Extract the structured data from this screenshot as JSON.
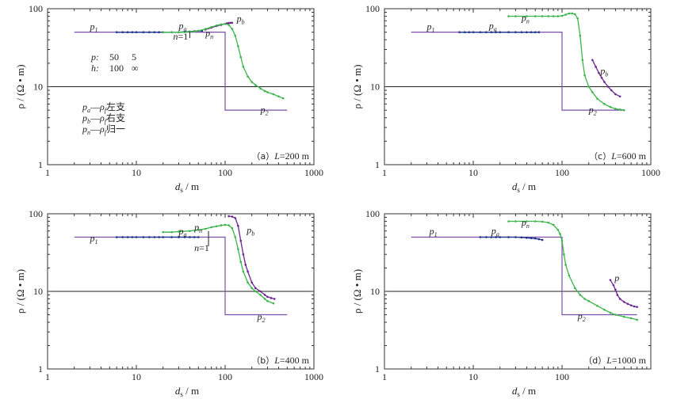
{
  "chart_data": [
    {
      "type": "line",
      "panel_label": "（a）",
      "title": "（a）L=200 m",
      "title_var": "L",
      "title_value": "=200 m",
      "xlabel_main": "d",
      "xlabel_sub": "s",
      "xlabel_unit": " / m",
      "ylabel": "ρ / (Ω • m)",
      "xscale": "log",
      "yscale": "log",
      "xlim": [
        1,
        1000
      ],
      "ylim": [
        1,
        100
      ],
      "xticks": [
        "1",
        "10",
        "100",
        "1000"
      ],
      "yticks": [
        "1",
        "10",
        "100"
      ],
      "model": {
        "upper": {
          "x": [
            2,
            100
          ],
          "y": 50
        },
        "step_x": 100,
        "lower": {
          "x": [
            100,
            500
          ],
          "y": 5
        }
      },
      "model_labels": [
        {
          "text": "p",
          "sub": "1",
          "x": 3,
          "y": 54
        },
        {
          "text": "p",
          "sub": "2",
          "x": 250,
          "y": 4.6
        }
      ],
      "series": [
        {
          "name_text": "p",
          "name_sub": "a",
          "color": "#1a2f8a",
          "x": [
            6,
            7,
            8,
            9,
            10,
            12,
            14,
            16,
            18,
            20,
            25,
            30,
            35,
            40,
            45,
            50,
            55
          ],
          "y": [
            50,
            50,
            50,
            50,
            50,
            50,
            50,
            50,
            50,
            50,
            50,
            50,
            50.5,
            51,
            51.5,
            52,
            52
          ]
        },
        {
          "name_text": "p",
          "name_sub": "b",
          "color": "#6a2590",
          "x": [
            60,
            70,
            80,
            90,
            100,
            105,
            110,
            115,
            120
          ],
          "y": [
            54,
            57,
            60,
            62,
            64,
            65,
            65.5,
            66,
            66
          ]
        },
        {
          "name_text": "p",
          "name_sub": "n",
          "color": "#3ab54a",
          "x": [
            20,
            25,
            30,
            35,
            40,
            45,
            50,
            60,
            70,
            80,
            90,
            100,
            110,
            120,
            130,
            140,
            150,
            160,
            180,
            200,
            220,
            250,
            280,
            300,
            350,
            400,
            450
          ],
          "y": [
            50,
            50,
            50,
            50,
            51,
            51,
            52,
            55,
            58,
            61,
            63,
            64,
            62,
            55,
            45,
            33,
            24,
            18,
            13.5,
            11.5,
            10.5,
            9.5,
            8.8,
            8.5,
            8,
            7.5,
            7.1
          ]
        }
      ],
      "annotations": [
        {
          "text": "p",
          "sub": "a",
          "x": 30,
          "y": 55
        },
        {
          "text": "p",
          "sub": "b",
          "x": 135,
          "y": 68
        },
        {
          "text": "p",
          "sub": "n",
          "x": 60,
          "y": 44
        },
        {
          "text": "n=1",
          "x": 26,
          "y": 40
        }
      ],
      "n1_arrow": {
        "x": 40,
        "y1": 42,
        "y2": 51
      },
      "params_box": {
        "rows": [
          {
            "label": "p:",
            "values": [
              "50",
              "5"
            ]
          },
          {
            "label": "h:",
            "values": [
              "100",
              "∞"
            ]
          }
        ]
      },
      "legend": {
        "items": [
          {
            "a": "p",
            "a_sub": "a",
            "b": "ρ",
            "b_sub": "f",
            "zh": "左支"
          },
          {
            "a": "p",
            "a_sub": "b",
            "b": "ρ",
            "b_sub": "f",
            "zh": "右支"
          },
          {
            "a": "p",
            "a_sub": "n",
            "b": "ρ",
            "b_sub": "f",
            "zh": "归一"
          }
        ]
      }
    },
    {
      "type": "line",
      "panel_label": "（c）",
      "title": "（c）L=600 m",
      "title_var": "L",
      "title_value": "=600 m",
      "xlabel_main": "d",
      "xlabel_sub": "s",
      "xlabel_unit": " / m",
      "ylabel": "ρ / (Ω • m)",
      "xscale": "log",
      "yscale": "log",
      "xlim": [
        1,
        1000
      ],
      "ylim": [
        1,
        100
      ],
      "xticks": [
        "1",
        "10",
        "100",
        "1000"
      ],
      "yticks": [
        "1",
        "10",
        "100"
      ],
      "model": {
        "upper": {
          "x": [
            2,
            100
          ],
          "y": 50
        },
        "step_x": 100,
        "lower": {
          "x": [
            100,
            500
          ],
          "y": 5
        }
      },
      "model_labels": [
        {
          "text": "p",
          "sub": "1",
          "x": 3,
          "y": 54
        },
        {
          "text": "p",
          "sub": "2",
          "x": 200,
          "y": 4.6
        }
      ],
      "series": [
        {
          "name_text": "p",
          "name_sub": "a",
          "color": "#1a2f8a",
          "x": [
            7,
            8,
            9,
            10,
            12,
            14,
            16,
            18,
            20,
            25,
            30,
            35,
            40,
            45,
            50,
            55
          ],
          "y": [
            50,
            50,
            50,
            50,
            50,
            50,
            50,
            50,
            50,
            50,
            50,
            50,
            50,
            50,
            50,
            50
          ]
        },
        {
          "name_text": "p",
          "name_sub": "b",
          "color": "#6a2590",
          "x": [
            220,
            240,
            260,
            280,
            300,
            330,
            360,
            400,
            450
          ],
          "y": [
            22,
            18,
            15,
            13,
            11.5,
            10,
            9,
            8,
            7.5
          ]
        },
        {
          "name_text": "p",
          "name_sub": "n",
          "color": "#3ab54a",
          "x": [
            25,
            30,
            40,
            50,
            60,
            70,
            80,
            90,
            100,
            110,
            120,
            130,
            140,
            150,
            160,
            170,
            180,
            200,
            220,
            250,
            300,
            350,
            400,
            450,
            500
          ],
          "y": [
            80,
            80,
            80,
            80,
            80,
            80,
            80,
            80,
            81,
            84,
            87,
            87,
            85,
            75,
            45,
            22,
            14,
            10,
            8.5,
            7,
            6,
            5.5,
            5.2,
            5.1,
            5
          ]
        }
      ],
      "annotations": [
        {
          "text": "p",
          "sub": "a",
          "x": 15,
          "y": 55
        },
        {
          "text": "p",
          "sub": "b",
          "x": 270,
          "y": 14.5
        },
        {
          "text": "p",
          "sub": "n",
          "x": 35,
          "y": 70
        }
      ]
    },
    {
      "type": "line",
      "panel_label": "（b）",
      "title": "（b）L=400 m",
      "title_var": "L",
      "title_value": "=400 m",
      "xlabel_main": "d",
      "xlabel_sub": "s",
      "xlabel_unit": " / m",
      "ylabel": "ρ / (Ω • m)",
      "xscale": "log",
      "yscale": "log",
      "xlim": [
        1,
        1000
      ],
      "ylim": [
        1,
        100
      ],
      "xticks": [
        "1",
        "10",
        "100",
        "1000"
      ],
      "yticks": [
        "1",
        "10",
        "100"
      ],
      "model": {
        "upper": {
          "x": [
            2,
            100
          ],
          "y": 50
        },
        "step_x": 100,
        "lower": {
          "x": [
            100,
            500
          ],
          "y": 5
        }
      },
      "model_labels": [
        {
          "text": "p",
          "sub": "1",
          "x": 3,
          "y": 44
        },
        {
          "text": "p",
          "sub": "2",
          "x": 230,
          "y": 4.3
        }
      ],
      "series": [
        {
          "name_text": "p",
          "name_sub": "a",
          "color": "#1a2f8a",
          "x": [
            6,
            7,
            8,
            9,
            10,
            12,
            14,
            16,
            18,
            20,
            25,
            30,
            35,
            40,
            45,
            50
          ],
          "y": [
            50,
            50,
            50,
            50,
            50,
            50,
            50,
            50,
            50,
            50,
            50,
            50,
            50,
            50,
            50,
            50
          ]
        },
        {
          "name_text": "p",
          "name_sub": "b",
          "color": "#6a2590",
          "x": [
            110,
            120,
            130,
            140,
            150,
            160,
            170,
            180,
            200,
            220,
            250,
            280,
            300,
            330,
            360
          ],
          "y": [
            93,
            92,
            88,
            70,
            45,
            30,
            22,
            18,
            13,
            11,
            10,
            9,
            8.5,
            8.2,
            8
          ]
        },
        {
          "name_text": "p",
          "name_sub": "n",
          "color": "#3ab54a",
          "x": [
            20,
            25,
            30,
            40,
            50,
            60,
            70,
            80,
            90,
            100,
            110,
            120,
            130,
            140,
            150,
            160,
            180,
            200,
            220,
            250,
            280,
            300,
            350
          ],
          "y": [
            58,
            58,
            59,
            60,
            62,
            64,
            67,
            69,
            71,
            72,
            71,
            65,
            50,
            35,
            24,
            18,
            13,
            11,
            10,
            9,
            8,
            7.5,
            7
          ]
        }
      ],
      "annotations": [
        {
          "text": "p",
          "sub": "a",
          "x": 30,
          "y": 54
        },
        {
          "text": "p",
          "sub": "b",
          "x": 175,
          "y": 56
        },
        {
          "text": "p",
          "sub": "n",
          "x": 45,
          "y": 61
        },
        {
          "text": "n=1",
          "x": 45,
          "y": 33
        }
      ],
      "n1_arrow": {
        "x": 65,
        "y1": 38,
        "y2": 60
      }
    },
    {
      "type": "line",
      "panel_label": "（d）",
      "title": "（d）L=1000 m",
      "title_var": "L",
      "title_value": "=1000 m",
      "xlabel_main": "d",
      "xlabel_sub": "s",
      "xlabel_unit": " / m",
      "ylabel": "ρ / (Ω • m)",
      "xscale": "log",
      "yscale": "log",
      "xlim": [
        1,
        1000
      ],
      "ylim": [
        1,
        100
      ],
      "xticks": [
        "1",
        "10",
        "100"
      ],
      "yticks": [
        "1",
        "10",
        "100"
      ],
      "model": {
        "upper": {
          "x": [
            2,
            100
          ],
          "y": 50
        },
        "step_x": 100,
        "lower": {
          "x": [
            100,
            700
          ],
          "y": 5
        }
      },
      "model_labels": [
        {
          "text": "p",
          "sub": "1",
          "x": 3.2,
          "y": 54
        },
        {
          "text": "p",
          "sub": "2",
          "x": 150,
          "y": 4.4
        }
      ],
      "series": [
        {
          "name_text": "p",
          "name_sub": "a",
          "color": "#1a2f8a",
          "x": [
            12,
            14,
            16,
            18,
            20,
            25,
            30,
            35,
            40,
            45,
            50,
            55,
            60
          ],
          "y": [
            50,
            50,
            50,
            50,
            50,
            50,
            50,
            49.5,
            49,
            48.5,
            48,
            47,
            46
          ]
        },
        {
          "name_text": "p",
          "name_sub": "b",
          "color": "#6a2590",
          "x": [
            350,
            380,
            400,
            420,
            450,
            500,
            550,
            600,
            650,
            700
          ],
          "y": [
            14,
            12,
            10.5,
            9,
            8,
            7.3,
            6.9,
            6.6,
            6.4,
            6.3
          ]
        },
        {
          "name_text": "p",
          "name_sub": "n",
          "color": "#3ab54a",
          "x": [
            25,
            30,
            40,
            50,
            60,
            70,
            80,
            90,
            95,
            100,
            105,
            110,
            120,
            140,
            160,
            180,
            200,
            250,
            300,
            350,
            400,
            500,
            600,
            700
          ],
          "y": [
            80,
            80,
            80,
            80,
            79,
            77,
            72,
            62,
            55,
            45,
            30,
            22,
            16,
            11,
            9,
            8,
            7.5,
            6.5,
            5.8,
            5.3,
            5,
            4.7,
            4.5,
            4.3
          ]
        }
      ],
      "annotations": [
        {
          "text": "p",
          "sub": "a",
          "x": 16,
          "y": 55
        },
        {
          "text": "p",
          "sub": "",
          "x": 390,
          "y": 13.5
        },
        {
          "text": "p",
          "sub": "n",
          "x": 35,
          "y": 70
        }
      ]
    }
  ]
}
